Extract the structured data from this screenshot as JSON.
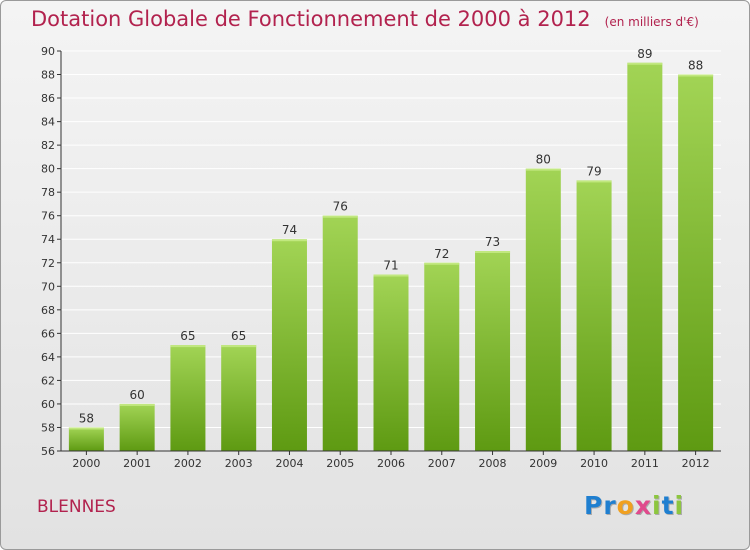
{
  "chart_data": {
    "type": "bar",
    "title": "Dotation Globale de Fonctionnement de 2000 à 2012",
    "subtitle": "(en milliers d'€)",
    "categories": [
      "2000",
      "2001",
      "2002",
      "2003",
      "2004",
      "2005",
      "2006",
      "2007",
      "2008",
      "2009",
      "2010",
      "2011",
      "2012"
    ],
    "values": [
      58,
      60,
      65,
      65,
      74,
      76,
      71,
      72,
      73,
      80,
      79,
      89,
      88
    ],
    "ylim": [
      56,
      90
    ],
    "yticks": [
      56,
      58,
      60,
      62,
      64,
      66,
      68,
      70,
      72,
      74,
      76,
      78,
      80,
      82,
      84,
      86,
      88,
      90
    ],
    "grid": true,
    "xlabel": "",
    "ylabel": ""
  },
  "commune": "BLENNES",
  "logo": {
    "text": "Proxiti",
    "letters": [
      {
        "ch": "P",
        "color": "#1f7fd0"
      },
      {
        "ch": "r",
        "color": "#1f7fd0"
      },
      {
        "ch": "o",
        "color": "#f0a020"
      },
      {
        "ch": "x",
        "color": "#e04a8c"
      },
      {
        "ch": "i",
        "color": "#8dc63f"
      },
      {
        "ch": "t",
        "color": "#1f7fd0"
      },
      {
        "ch": "i",
        "color": "#8dc63f"
      }
    ]
  },
  "colors": {
    "title": "#b2224e",
    "bar_light": "#a2d455",
    "bar_dark": "#5e9a12",
    "axis": "#333333",
    "grid": "#ffffff"
  }
}
